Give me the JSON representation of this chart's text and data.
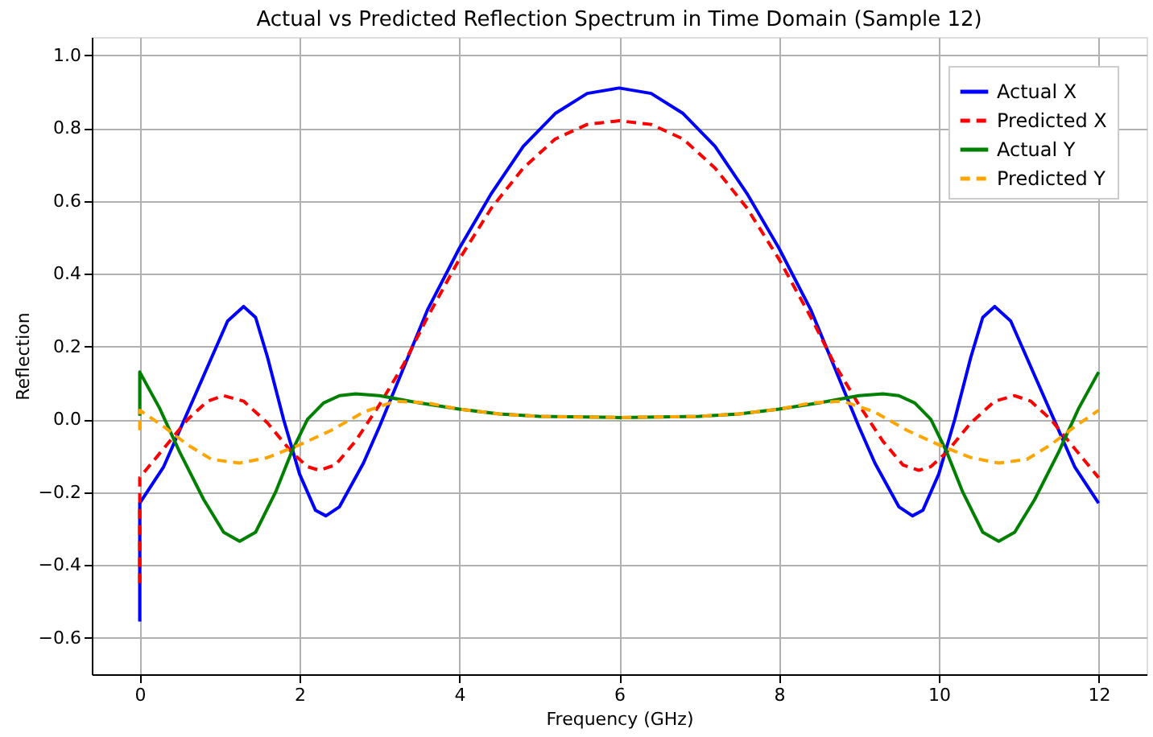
{
  "chart_data": {
    "type": "line",
    "title": "Actual vs Predicted Reflection Spectrum in Time Domain (Sample 12)",
    "xlabel": "Frequency (GHz)",
    "ylabel": "Reflection",
    "xlim": [
      -0.6,
      12.6
    ],
    "xticks": [
      0,
      2,
      4,
      6,
      8,
      10,
      12
    ],
    "ylim": [
      -0.7,
      1.05
    ],
    "yticks": [
      {
        "value": -0.6,
        "label": "−0.6"
      },
      {
        "value": -0.4,
        "label": "−0.4"
      },
      {
        "value": -0.2,
        "label": "−0.2"
      },
      {
        "value": 0,
        "label": "0.0"
      },
      {
        "value": 0.2,
        "label": "0.2"
      },
      {
        "value": 0.4,
        "label": "0.4"
      },
      {
        "value": 0.6,
        "label": "0.6"
      },
      {
        "value": 0.8,
        "label": "0.8"
      },
      {
        "value": 1.0,
        "label": "1.0"
      }
    ],
    "grid": true,
    "legend": "top right",
    "series": [
      {
        "name": "Actual X",
        "color": "#0000ff",
        "line_style": "solid",
        "x": [
          0,
          0,
          0.3,
          0.6,
          0.9,
          1.1,
          1.3,
          1.45,
          1.6,
          1.8,
          2.0,
          2.2,
          2.33,
          2.5,
          2.8,
          3.0,
          3.3,
          3.6,
          4.0,
          4.4,
          4.8,
          5.2,
          5.6,
          6.0,
          6.4,
          6.8,
          7.2,
          7.6,
          8.0,
          8.4,
          8.7,
          9.0,
          9.2,
          9.5,
          9.67,
          9.8,
          10.0,
          10.2,
          10.4,
          10.55,
          10.7,
          10.9,
          11.1,
          11.4,
          11.7,
          12
        ],
        "values": [
          -0.555,
          -0.23,
          -0.13,
          0.02,
          0.17,
          0.27,
          0.31,
          0.28,
          0.17,
          0.0,
          -0.15,
          -0.25,
          -0.265,
          -0.24,
          -0.12,
          -0.02,
          0.14,
          0.3,
          0.47,
          0.62,
          0.75,
          0.84,
          0.895,
          0.91,
          0.895,
          0.84,
          0.75,
          0.62,
          0.47,
          0.3,
          0.14,
          -0.02,
          -0.12,
          -0.24,
          -0.265,
          -0.25,
          -0.15,
          0.0,
          0.17,
          0.28,
          0.31,
          0.27,
          0.17,
          0.02,
          -0.13,
          -0.23
        ]
      },
      {
        "name": "Predicted X",
        "color": "#ff0000",
        "line_style": "dashed",
        "x": [
          0,
          0,
          0.3,
          0.6,
          0.85,
          1.05,
          1.3,
          1.6,
          1.9,
          2.1,
          2.25,
          2.45,
          2.7,
          3.0,
          3.3,
          3.6,
          4.0,
          4.4,
          4.8,
          5.2,
          5.6,
          6.0,
          6.4,
          6.8,
          7.2,
          7.6,
          8.0,
          8.4,
          8.7,
          9.0,
          9.3,
          9.55,
          9.75,
          9.9,
          10.1,
          10.4,
          10.7,
          10.95,
          11.15,
          11.4,
          11.7,
          12
        ],
        "values": [
          -0.45,
          -0.16,
          -0.08,
          0.0,
          0.05,
          0.065,
          0.05,
          -0.01,
          -0.09,
          -0.13,
          -0.14,
          -0.125,
          -0.06,
          0.04,
          0.15,
          0.28,
          0.44,
          0.58,
          0.69,
          0.77,
          0.81,
          0.82,
          0.81,
          0.77,
          0.69,
          0.58,
          0.44,
          0.28,
          0.15,
          0.04,
          -0.06,
          -0.125,
          -0.14,
          -0.13,
          -0.09,
          -0.01,
          0.05,
          0.065,
          0.05,
          0.0,
          -0.08,
          -0.16
        ]
      },
      {
        "name": "Actual Y",
        "color": "#008000",
        "line_style": "solid",
        "x": [
          0,
          0,
          0.25,
          0.5,
          0.8,
          1.05,
          1.25,
          1.45,
          1.7,
          1.9,
          2.1,
          2.3,
          2.5,
          2.7,
          3.0,
          3.5,
          4.0,
          4.5,
          5.0,
          6.0,
          7.0,
          7.5,
          8.0,
          8.5,
          9.0,
          9.3,
          9.5,
          9.7,
          9.9,
          10.1,
          10.3,
          10.55,
          10.75,
          10.95,
          11.2,
          11.5,
          11.75,
          12
        ],
        "values": [
          0.01,
          0.13,
          0.03,
          -0.09,
          -0.22,
          -0.31,
          -0.335,
          -0.31,
          -0.2,
          -0.09,
          0.0,
          0.045,
          0.065,
          0.07,
          0.065,
          0.045,
          0.028,
          0.015,
          0.008,
          0.005,
          0.008,
          0.015,
          0.028,
          0.045,
          0.065,
          0.07,
          0.065,
          0.045,
          0.0,
          -0.09,
          -0.2,
          -0.31,
          -0.335,
          -0.31,
          -0.22,
          -0.09,
          0.03,
          0.13
        ]
      },
      {
        "name": "Predicted Y",
        "color": "#ffa500",
        "line_style": "dashed",
        "x": [
          0,
          0,
          0.3,
          0.6,
          0.9,
          1.25,
          1.6,
          2.0,
          2.4,
          2.8,
          3.2,
          3.6,
          4.0,
          4.5,
          5.0,
          6.0,
          7.0,
          7.5,
          8.0,
          8.4,
          8.8,
          9.2,
          9.6,
          10.0,
          10.4,
          10.75,
          11.1,
          11.4,
          11.7,
          12
        ],
        "values": [
          -0.03,
          0.025,
          -0.02,
          -0.07,
          -0.11,
          -0.12,
          -0.105,
          -0.07,
          -0.03,
          0.02,
          0.05,
          0.045,
          0.028,
          0.015,
          0.008,
          0.005,
          0.008,
          0.015,
          0.028,
          0.045,
          0.05,
          0.02,
          -0.03,
          -0.07,
          -0.105,
          -0.12,
          -0.11,
          -0.07,
          -0.02,
          0.025
        ]
      }
    ]
  }
}
